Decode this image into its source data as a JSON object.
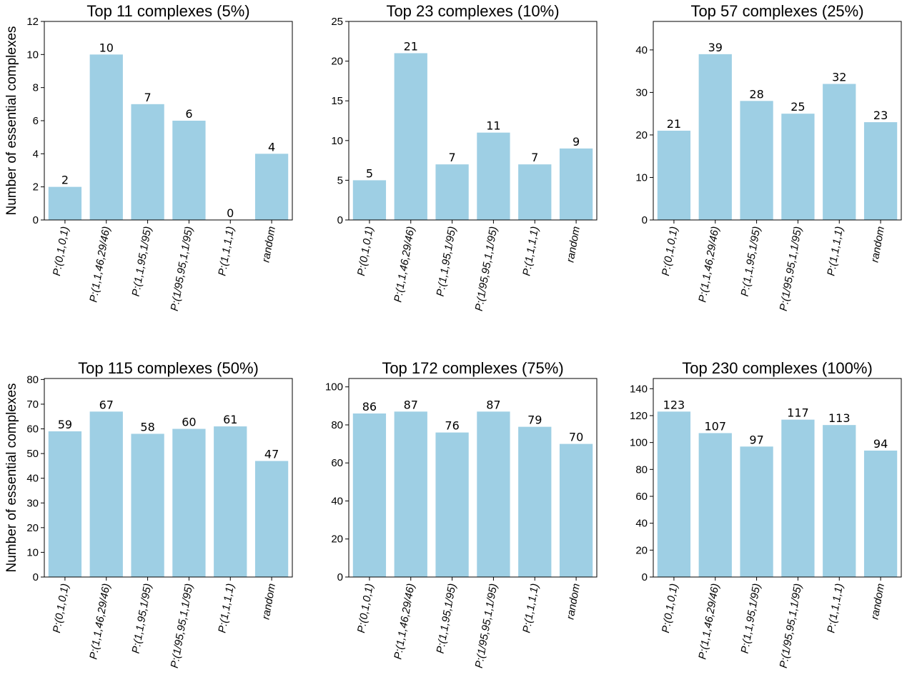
{
  "figure": {
    "ylabel": "Number of essential complexes"
  },
  "colors": {
    "bar": "#9ecfe4",
    "axis": "#000000"
  },
  "chart_data": [
    {
      "type": "bar",
      "title": "Top 11 complexes (5%)",
      "categories": [
        "P:(0,1,0,1)",
        "P:(1,1,46,29/46)",
        "P:(1,1,95,1/95)",
        "P:(1/95,95,1,1/95)",
        "P:(1,1,1,1)",
        "random"
      ],
      "values": [
        2,
        10,
        7,
        6,
        0,
        4
      ],
      "ylim": [
        0,
        12
      ],
      "yticks": [
        0,
        2,
        4,
        6,
        8,
        10,
        12
      ],
      "ylabel": "Number of essential complexes"
    },
    {
      "type": "bar",
      "title": "Top 23 complexes (10%)",
      "categories": [
        "P:(0,1,0,1)",
        "P:(1,1,46,29/46)",
        "P:(1,1,95,1/95)",
        "P:(1/95,95,1,1/95)",
        "P:(1,1,1,1)",
        "random"
      ],
      "values": [
        5,
        21,
        7,
        11,
        7,
        9
      ],
      "ylim": [
        0,
        25
      ],
      "yticks": [
        0,
        5,
        10,
        15,
        20,
        25
      ],
      "ylabel": ""
    },
    {
      "type": "bar",
      "title": "Top 57 complexes (25%)",
      "categories": [
        "P:(0,1,0,1)",
        "P:(1,1,46,29/46)",
        "P:(1,1,95,1/95)",
        "P:(1/95,95,1,1/95)",
        "P:(1,1,1,1)",
        "random"
      ],
      "values": [
        21,
        39,
        28,
        25,
        32,
        23
      ],
      "ylim": [
        0,
        46.7
      ],
      "yticks": [
        0,
        10,
        20,
        30,
        40
      ],
      "ylabel": ""
    },
    {
      "type": "bar",
      "title": "Top 115 complexes (50%)",
      "categories": [
        "P:(0,1,0,1)",
        "P:(1,1,46,29/46)",
        "P:(1,1,95,1/95)",
        "P:(1/95,95,1,1/95)",
        "P:(1,1,1,1)",
        "random"
      ],
      "values": [
        59,
        67,
        58,
        60,
        61,
        47
      ],
      "ylim": [
        0,
        80.4
      ],
      "yticks": [
        0,
        10,
        20,
        30,
        40,
        50,
        60,
        70,
        80
      ],
      "ylabel": "Number of essential complexes"
    },
    {
      "type": "bar",
      "title": "Top 172 complexes (75%)",
      "categories": [
        "P:(0,1,0,1)",
        "P:(1,1,46,29/46)",
        "P:(1,1,95,1/95)",
        "P:(1/95,95,1,1/95)",
        "P:(1,1,1,1)",
        "random"
      ],
      "values": [
        86,
        87,
        76,
        87,
        79,
        70
      ],
      "ylim": [
        0,
        104.4
      ],
      "yticks": [
        0,
        20,
        40,
        60,
        80,
        100
      ],
      "ylabel": ""
    },
    {
      "type": "bar",
      "title": "Top 230 complexes (100%)",
      "categories": [
        "P:(0,1,0,1)",
        "P:(1,1,46,29/46)",
        "P:(1,1,95,1/95)",
        "P:(1/95,95,1,1/95)",
        "P:(1,1,1,1)",
        "random"
      ],
      "values": [
        123,
        107,
        97,
        117,
        113,
        94
      ],
      "ylim": [
        0,
        147.6
      ],
      "yticks": [
        0,
        20,
        40,
        60,
        80,
        100,
        120,
        140
      ],
      "ylabel": ""
    }
  ]
}
